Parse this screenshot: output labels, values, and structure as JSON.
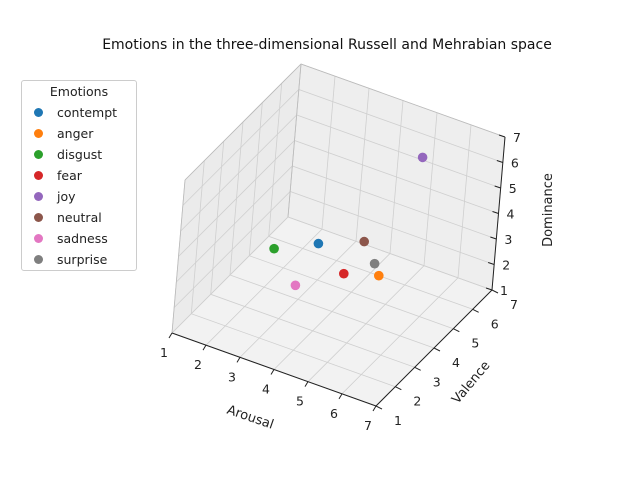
{
  "chart_data": {
    "type": "scatter",
    "title": "Emotions in the three-dimensional Russell and Mehrabian space",
    "xlabel": "Arousal",
    "ylabel": "Valence",
    "zlabel": "Dominance",
    "xlim": [
      1,
      7
    ],
    "ylim": [
      1,
      7
    ],
    "zlim": [
      1,
      7
    ],
    "xticks": [
      "1",
      "2",
      "3",
      "4",
      "5",
      "6",
      "7"
    ],
    "yticks": [
      "1",
      "2",
      "3",
      "4",
      "5",
      "6",
      "7"
    ],
    "zticks": [
      "1",
      "2",
      "3",
      "4",
      "5",
      "6",
      "7"
    ],
    "grid": true,
    "legend_title": "Emotions",
    "legend_position": "upper-left",
    "series": [
      {
        "name": "contempt",
        "color": "#1f77b4",
        "x": 3.6,
        "y": 3.7,
        "z": 3.7
      },
      {
        "name": "anger",
        "color": "#ff7f0e",
        "x": 5.5,
        "y": 3.5,
        "z": 3.5
      },
      {
        "name": "disgust",
        "color": "#2ca02c",
        "x": 2.7,
        "y": 3.0,
        "z": 3.6
      },
      {
        "name": "fear",
        "color": "#d62728",
        "x": 4.6,
        "y": 3.3,
        "z": 3.3
      },
      {
        "name": "joy",
        "color": "#9467bd",
        "x": 5.0,
        "y": 6.4,
        "z": 5.7
      },
      {
        "name": "neutral",
        "color": "#8c564b",
        "x": 4.7,
        "y": 4.1,
        "z": 4.0
      },
      {
        "name": "sadness",
        "color": "#e377c2",
        "x": 3.6,
        "y": 2.6,
        "z": 2.9
      },
      {
        "name": "surprise",
        "color": "#7f7f7f",
        "x": 5.2,
        "y": 3.8,
        "z": 3.6
      }
    ]
  }
}
